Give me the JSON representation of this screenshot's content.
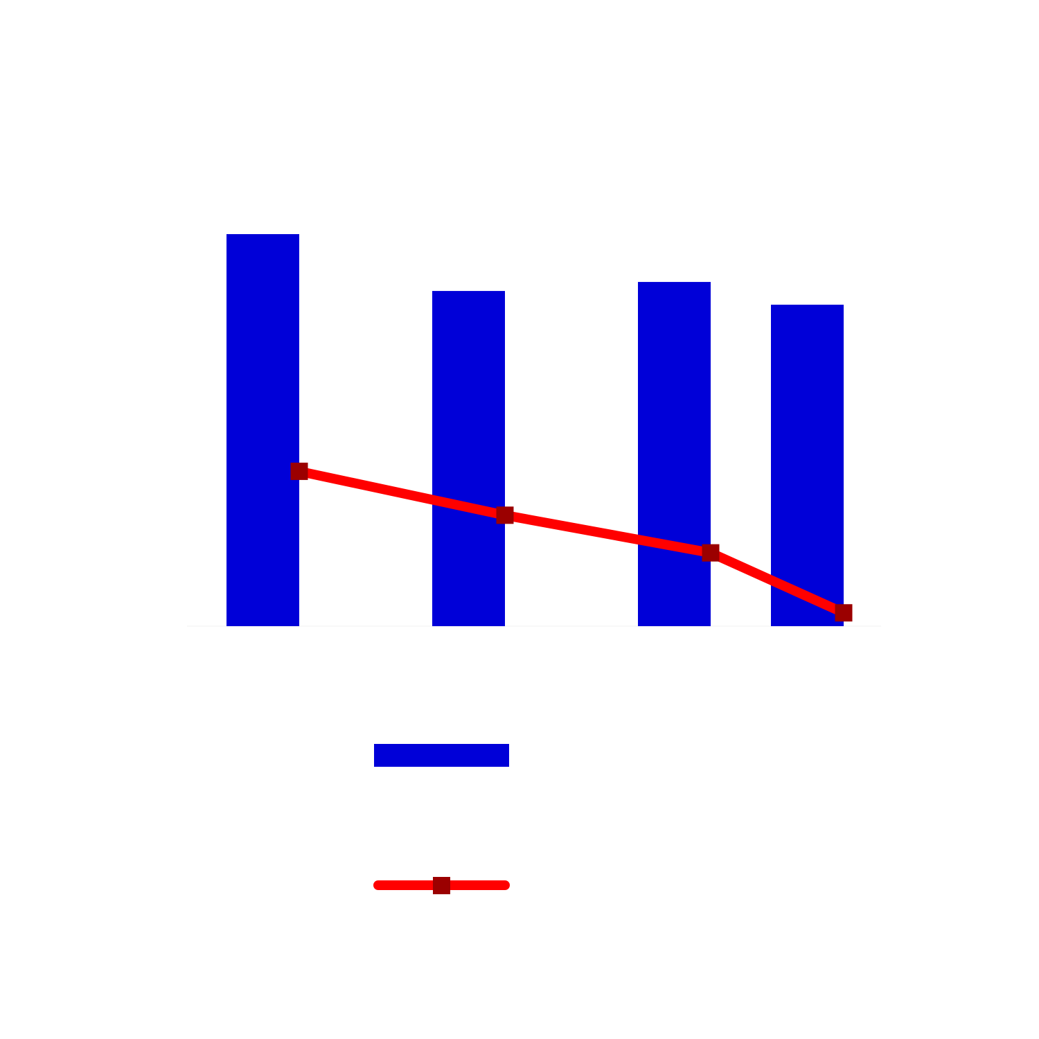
{
  "chart_data": {
    "type": "bar",
    "categories": [
      "",
      "",
      "",
      ""
    ],
    "series": [
      {
        "type": "bar",
        "color": "#0000d8",
        "values": [
          100,
          85.5,
          87.8,
          82
        ]
      },
      {
        "type": "line",
        "color": "#ff0000",
        "marker": "square",
        "marker_color": "#9b0000",
        "values": [
          39.5,
          28.3,
          18.7,
          3.4
        ]
      }
    ],
    "ylim": [
      0,
      100
    ],
    "grid": false,
    "legend": "bottom-center",
    "title": "",
    "xlabel": "",
    "ylabel": ""
  }
}
